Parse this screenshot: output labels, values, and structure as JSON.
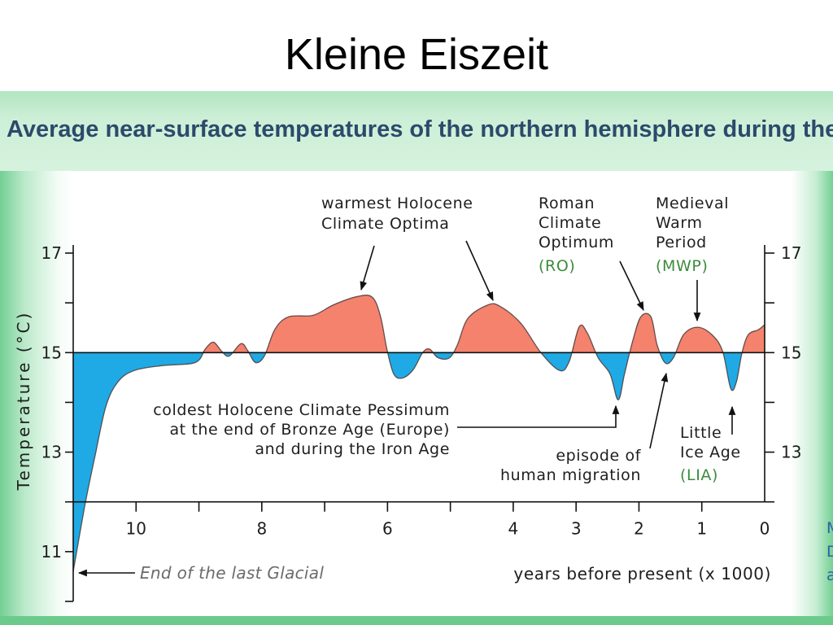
{
  "slide": {
    "title": "Kleine Eiszeit",
    "edge_fragments": [
      "M",
      "D",
      "a"
    ]
  },
  "colors": {
    "warm_fill": "#F4826C",
    "cold_fill": "#1FAAE5",
    "curve_stroke": "#4A3A38",
    "abbr_text": "#3C8C3C",
    "header_text": "#2B4A6B",
    "glacial_text": "#6B6B6B",
    "panel_green": "#74CF93",
    "fragment_text": "#2E5FA8"
  },
  "chart_data": {
    "type": "area",
    "title": "Average near-surface temperatures of the northern hemisphere during the",
    "xlabel": "years before present (x 1000)",
    "ylabel": "Temperature (°C)",
    "xlim": [
      11,
      0
    ],
    "ylim": [
      10,
      17
    ],
    "baseline": 15,
    "grid": false,
    "x_ticks": [
      10,
      8,
      6,
      4,
      3,
      2,
      1,
      0
    ],
    "y_ticks_left": [
      17,
      15,
      13,
      11
    ],
    "y_ticks_right": [
      17,
      15,
      13
    ],
    "series": [
      {
        "x": [
          11.0,
          10.81,
          10.65,
          10.48,
          10.29,
          10.03,
          9.58,
          9.06,
          8.9,
          8.77,
          8.64,
          8.52,
          8.33,
          8.22,
          8.1,
          7.96,
          7.79,
          7.57,
          7.18,
          6.86,
          6.47,
          6.24,
          6.11,
          6.01,
          5.9,
          5.76,
          5.59,
          5.44,
          5.33,
          5.2,
          5.02,
          4.89,
          4.72,
          4.4,
          4.21,
          3.88,
          3.56,
          3.26,
          3.11,
          2.95,
          2.82,
          2.65,
          2.46,
          2.33,
          2.23,
          2.1,
          1.97,
          1.81,
          1.71,
          1.58,
          1.45,
          1.29,
          1.07,
          0.84,
          0.67,
          0.54,
          0.45,
          0.36,
          0.26,
          0.1,
          0.0
        ],
        "y": [
          10.6,
          11.96,
          12.94,
          13.92,
          14.41,
          14.64,
          14.74,
          14.8,
          15.07,
          15.21,
          15.03,
          14.93,
          15.18,
          15.03,
          14.8,
          14.93,
          15.47,
          15.72,
          15.75,
          15.96,
          16.13,
          16.11,
          15.72,
          15.07,
          14.57,
          14.49,
          14.66,
          15.0,
          15.07,
          14.9,
          14.89,
          15.15,
          15.69,
          15.96,
          15.93,
          15.59,
          15.0,
          14.64,
          14.82,
          15.52,
          15.39,
          14.9,
          14.57,
          14.05,
          14.57,
          15.23,
          15.72,
          15.72,
          15.15,
          14.79,
          14.9,
          15.36,
          15.51,
          15.36,
          15.03,
          14.28,
          14.41,
          15.0,
          15.36,
          15.46,
          15.56
        ]
      }
    ],
    "annotations": [
      {
        "lines": [
          "warmest Holocene",
          "Climate Optima"
        ]
      },
      {
        "lines": [
          "Roman",
          "Climate",
          "Optimum"
        ],
        "abbr": "(RO)"
      },
      {
        "lines": [
          "Medieval",
          "Warm",
          "Period"
        ],
        "abbr": "(MWP)"
      },
      {
        "lines": [
          "coldest Holocene Climate Pessimum",
          "at the end of Bronze Age (Europe)",
          "and during the Iron Age"
        ]
      },
      {
        "lines": [
          "episode of",
          "human migration"
        ]
      },
      {
        "lines": [
          "Little",
          "Ice Age"
        ],
        "abbr": "(LIA)"
      },
      {
        "lines": [
          "End of the last Glacial"
        ]
      }
    ]
  }
}
